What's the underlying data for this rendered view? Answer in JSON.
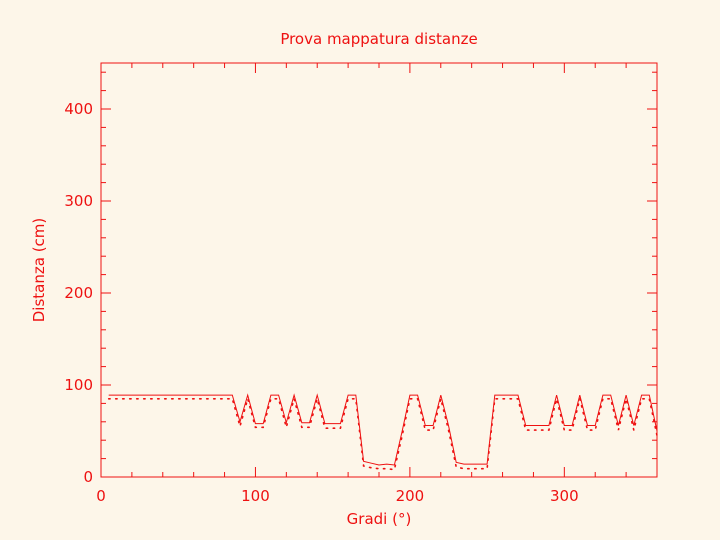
{
  "chart_data": {
    "type": "line",
    "title": "Prova mappatura distanze",
    "xlabel": "Gradi (°)",
    "ylabel": "Distanza (cm)",
    "xlim": [
      0,
      360
    ],
    "ylim": [
      0,
      450
    ],
    "xticks": [
      0,
      100,
      200,
      300
    ],
    "yticks": [
      0,
      100,
      200,
      300,
      400
    ],
    "grid": false,
    "color": "#ee1111",
    "background": "#fdf6e9",
    "series": [
      {
        "style": "solid",
        "x": [
          5,
          85,
          90,
          95,
          100,
          105,
          110,
          115,
          120,
          125,
          130,
          135,
          140,
          145,
          150,
          155,
          160,
          165,
          170,
          175,
          180,
          185,
          190,
          195,
          200,
          205,
          210,
          215,
          220,
          225,
          230,
          235,
          240,
          245,
          250,
          255,
          260,
          265,
          270,
          275,
          280,
          285,
          290,
          295,
          300,
          305,
          310,
          315,
          320,
          325,
          330,
          335,
          340,
          345,
          350,
          355,
          360
        ],
        "y": [
          89,
          89,
          60,
          89,
          58,
          58,
          89,
          89,
          59,
          89,
          59,
          59,
          89,
          58,
          58,
          58,
          89,
          89,
          17,
          15,
          13,
          14,
          13,
          50,
          89,
          89,
          56,
          56,
          89,
          56,
          16,
          14,
          14,
          14,
          14,
          89,
          89,
          89,
          89,
          56,
          56,
          56,
          56,
          89,
          56,
          56,
          89,
          56,
          56,
          89,
          89,
          56,
          89,
          56,
          89,
          89,
          50
        ]
      },
      {
        "style": "dotted",
        "x": [
          5,
          85,
          90,
          95,
          100,
          105,
          110,
          115,
          120,
          125,
          130,
          135,
          140,
          145,
          150,
          155,
          160,
          165,
          170,
          175,
          180,
          185,
          190,
          195,
          200,
          205,
          210,
          215,
          220,
          225,
          230,
          235,
          240,
          245,
          250,
          255,
          260,
          265,
          270,
          275,
          280,
          285,
          290,
          295,
          300,
          305,
          310,
          315,
          320,
          325,
          330,
          335,
          340,
          345,
          350,
          355,
          360
        ],
        "y": [
          85,
          85,
          55,
          85,
          54,
          54,
          85,
          85,
          54,
          85,
          54,
          54,
          85,
          53,
          53,
          53,
          85,
          85,
          12,
          10,
          9,
          9,
          8,
          45,
          85,
          85,
          51,
          51,
          85,
          51,
          11,
          9,
          9,
          9,
          9,
          85,
          85,
          85,
          85,
          51,
          51,
          51,
          51,
          85,
          51,
          51,
          85,
          51,
          51,
          85,
          85,
          51,
          85,
          51,
          85,
          85,
          45
        ]
      }
    ]
  }
}
